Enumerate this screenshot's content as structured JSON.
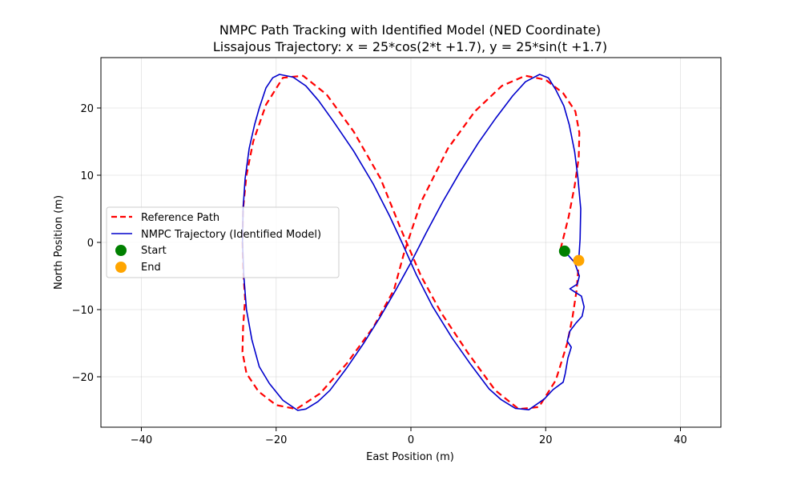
{
  "chart_data": {
    "type": "line",
    "title": "NMPC Path Tracking with Identified Model (NED Coordinate)",
    "subtitle": "Lissajous Trajectory: x = 25*cos(2*t +1.7), y = 25*sin(t +1.7)",
    "xlabel": "East Position (m)",
    "ylabel": "North Position (m)",
    "xlim": [
      -46,
      46
    ],
    "ylim": [
      -27.5,
      27.5
    ],
    "xticks": [
      -40,
      -20,
      0,
      20,
      40
    ],
    "yticks": [
      -20,
      -10,
      0,
      10,
      20
    ],
    "xtick_labels": [
      "−40",
      "−20",
      "0",
      "20",
      "40"
    ],
    "ytick_labels": [
      "−20",
      "−10",
      "0",
      "10",
      "20"
    ],
    "grid": true,
    "legend_position": "center-left",
    "series": [
      {
        "name": "Reference Path",
        "color": "#ff0000",
        "style": "dashed",
        "points": [
          [
            22.2,
            -1.0
          ],
          [
            23.4,
            3.8
          ],
          [
            24.3,
            8.4
          ],
          [
            24.9,
            12.6
          ],
          [
            25.0,
            16.3
          ],
          [
            24.4,
            19.5
          ],
          [
            22.6,
            22.2
          ],
          [
            20.0,
            24.2
          ],
          [
            17.0,
            24.8
          ],
          [
            13.5,
            23.3
          ],
          [
            9.5,
            19.5
          ],
          [
            5.5,
            14.0
          ],
          [
            1.5,
            6.0
          ],
          [
            -1.0,
            -1.5
          ],
          [
            -2.5,
            -7.0
          ],
          [
            -5.5,
            -12.5
          ],
          [
            -9.5,
            -18.0
          ],
          [
            -13.5,
            -22.5
          ],
          [
            -17.0,
            -24.8
          ],
          [
            -20.0,
            -24.2
          ],
          [
            -22.6,
            -22.2
          ],
          [
            -24.4,
            -19.5
          ],
          [
            -25.0,
            -16.3
          ],
          [
            -24.9,
            -12.6
          ],
          [
            -24.6,
            -8.4
          ],
          [
            -24.9,
            -4.0
          ],
          [
            -25.0,
            0.0
          ],
          [
            -24.9,
            5.0
          ],
          [
            -24.4,
            10.0
          ],
          [
            -23.4,
            15.0
          ],
          [
            -21.5,
            20.5
          ],
          [
            -19.0,
            24.5
          ],
          [
            -16.0,
            24.8
          ],
          [
            -12.5,
            22.0
          ],
          [
            -8.5,
            16.5
          ],
          [
            -4.5,
            9.5
          ],
          [
            -1.5,
            2.0
          ],
          [
            1.5,
            -5.0
          ],
          [
            4.5,
            -10.5
          ],
          [
            8.5,
            -16.5
          ],
          [
            12.5,
            -22.0
          ],
          [
            16.0,
            -24.8
          ],
          [
            19.0,
            -24.5
          ],
          [
            21.5,
            -20.5
          ],
          [
            23.2,
            -15.0
          ],
          [
            24.0,
            -11.0
          ],
          [
            24.6,
            -7.0
          ],
          [
            24.9,
            -3.0
          ]
        ]
      },
      {
        "name": "NMPC Trajectory (Identified Model)",
        "color": "#0000cc",
        "style": "solid",
        "points": [
          [
            22.8,
            -1.3
          ],
          [
            24.3,
            -3.0
          ],
          [
            25.0,
            -5.0
          ],
          [
            24.7,
            -6.2
          ],
          [
            23.6,
            -6.9
          ],
          [
            24.2,
            -7.3
          ],
          [
            25.3,
            -8.0
          ],
          [
            25.7,
            -9.6
          ],
          [
            25.4,
            -11.0
          ],
          [
            24.5,
            -12.0
          ],
          [
            23.6,
            -13.2
          ],
          [
            23.2,
            -14.7
          ],
          [
            23.8,
            -15.6
          ],
          [
            23.3,
            -17.2
          ],
          [
            22.9,
            -19.5
          ],
          [
            22.6,
            -20.8
          ],
          [
            21.1,
            -21.9
          ],
          [
            19.8,
            -23.3
          ],
          [
            17.5,
            -24.9
          ],
          [
            15.5,
            -24.7
          ],
          [
            13.4,
            -23.4
          ],
          [
            11.6,
            -21.8
          ],
          [
            8.9,
            -18.2
          ],
          [
            6.1,
            -14.2
          ],
          [
            3.2,
            -9.5
          ],
          [
            0.8,
            -4.8
          ],
          [
            -1.2,
            -0.3
          ],
          [
            -3.2,
            4.0
          ],
          [
            -5.6,
            8.7
          ],
          [
            -8.5,
            13.6
          ],
          [
            -11.5,
            18.0
          ],
          [
            -13.7,
            21.1
          ],
          [
            -15.6,
            23.3
          ],
          [
            -17.5,
            24.6
          ],
          [
            -19.5,
            25.0
          ],
          [
            -20.5,
            24.5
          ],
          [
            -21.5,
            23.0
          ],
          [
            -22.5,
            20.0
          ],
          [
            -23.2,
            17.5
          ],
          [
            -24.0,
            14.0
          ],
          [
            -24.6,
            9.5
          ],
          [
            -24.9,
            5.0
          ],
          [
            -25.0,
            0.0
          ],
          [
            -24.8,
            -5.0
          ],
          [
            -24.4,
            -10.0
          ],
          [
            -23.6,
            -14.5
          ],
          [
            -22.5,
            -18.5
          ],
          [
            -21.0,
            -21.0
          ],
          [
            -19.0,
            -23.5
          ],
          [
            -16.8,
            -25.0
          ],
          [
            -15.6,
            -24.8
          ],
          [
            -13.8,
            -23.7
          ],
          [
            -12.0,
            -22.0
          ],
          [
            -9.6,
            -18.8
          ],
          [
            -7.0,
            -15.0
          ],
          [
            -4.5,
            -11.0
          ],
          [
            -2.2,
            -7.0
          ],
          [
            0.0,
            -3.0
          ],
          [
            2.3,
            1.5
          ],
          [
            4.7,
            6.0
          ],
          [
            7.3,
            10.5
          ],
          [
            10.0,
            14.8
          ],
          [
            12.6,
            18.5
          ],
          [
            15.1,
            21.8
          ],
          [
            17.0,
            23.9
          ],
          [
            19.1,
            25.0
          ],
          [
            20.4,
            24.5
          ],
          [
            21.5,
            22.7
          ],
          [
            22.7,
            20.3
          ],
          [
            23.5,
            17.5
          ],
          [
            24.3,
            13.5
          ],
          [
            24.8,
            9.5
          ],
          [
            25.2,
            5.0
          ],
          [
            25.1,
            0.5
          ],
          [
            24.9,
            -2.7
          ]
        ]
      }
    ],
    "markers": [
      {
        "name": "Start",
        "color": "#008000",
        "point": [
          22.8,
          -1.3
        ]
      },
      {
        "name": "End",
        "color": "#ffa500",
        "point": [
          24.9,
          -2.7
        ]
      }
    ]
  }
}
